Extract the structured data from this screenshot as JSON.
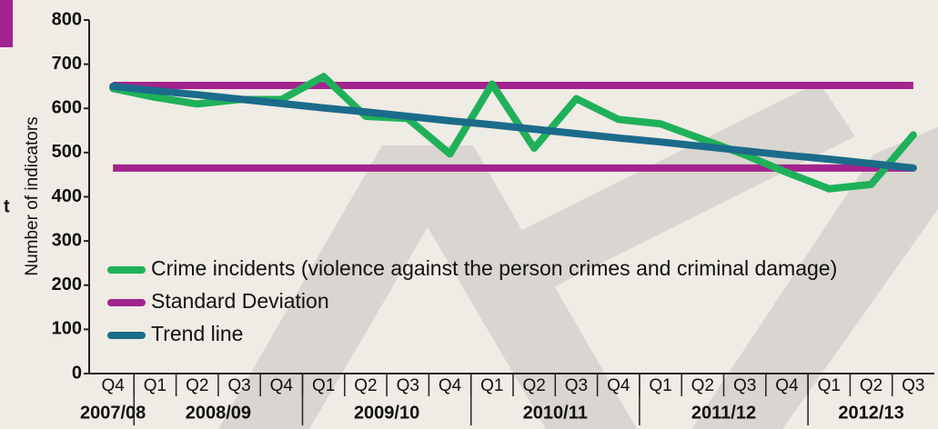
{
  "chart_data": {
    "type": "line",
    "ylabel": "Number of indicators",
    "side_text": "t",
    "categories": [
      "Q4",
      "Q1",
      "Q2",
      "Q3",
      "Q4",
      "Q1",
      "Q2",
      "Q3",
      "Q4",
      "Q1",
      "Q2",
      "Q3",
      "Q4",
      "Q1",
      "Q2",
      "Q3",
      "Q4",
      "Q1",
      "Q2",
      "Q3"
    ],
    "groups": [
      {
        "label": "2007/08",
        "size": 1
      },
      {
        "label": "2008/09",
        "size": 4
      },
      {
        "label": "2009/10",
        "size": 4
      },
      {
        "label": "2010/11",
        "size": 4
      },
      {
        "label": "2011/12",
        "size": 4
      },
      {
        "label": "2012/13",
        "size": 3
      }
    ],
    "ylim": [
      0,
      800
    ],
    "yticks": [
      0,
      100,
      200,
      300,
      400,
      500,
      600,
      700,
      800
    ],
    "series": [
      {
        "name": "Crime incidents (violence against the person crimes and criminal damage)",
        "color": "#1fb15a",
        "values": [
          645,
          625,
          610,
          620,
          620,
          672,
          582,
          577,
          497,
          655,
          510,
          622,
          575,
          565,
          530,
          495,
          455,
          418,
          428,
          540
        ]
      },
      {
        "name": "Standard Deviation",
        "color": "#a3238e",
        "levels": [
          652,
          465
        ]
      },
      {
        "name": "Trend line",
        "color": "#1b6b8a",
        "values": [
          650,
          640,
          631,
          621,
          611,
          601,
          592,
          582,
          572,
          563,
          553,
          543,
          533,
          524,
          514,
          504,
          494,
          485,
          475,
          465
        ]
      }
    ]
  }
}
